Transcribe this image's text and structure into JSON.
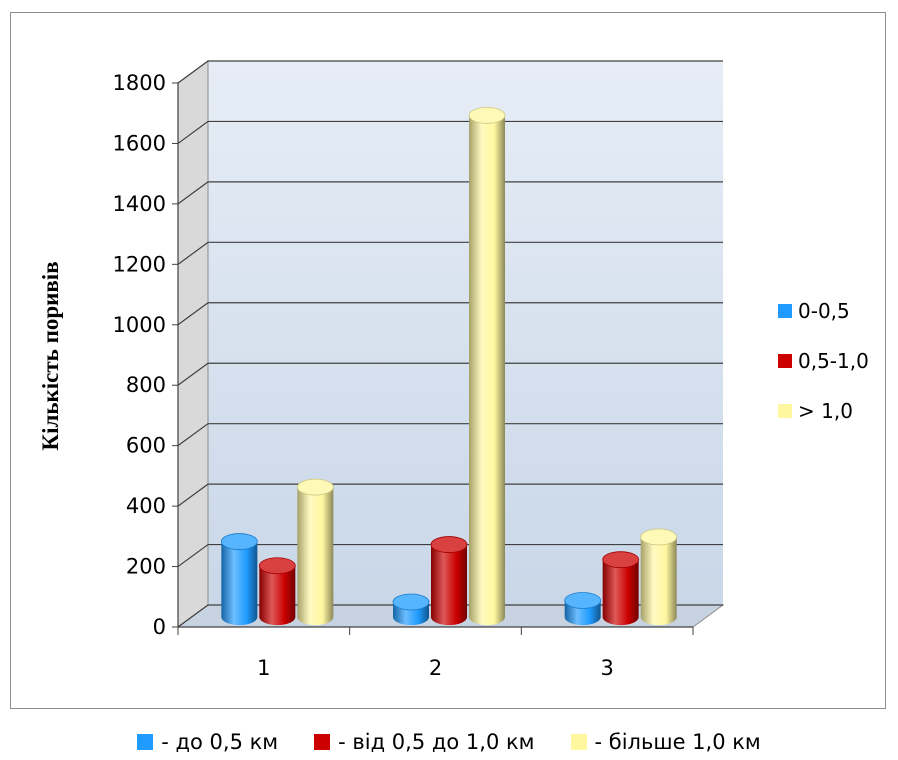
{
  "chart_data": {
    "type": "bar",
    "categories": [
      "1",
      "2",
      "3"
    ],
    "series": [
      {
        "name": "0-0,5",
        "values": [
          250,
          50,
          55
        ],
        "color": "#1f9bff"
      },
      {
        "name": "0,5-1,0",
        "values": [
          170,
          240,
          190
        ],
        "color": "#cc0000"
      },
      {
        "name": "> 1,0",
        "values": [
          430,
          1660,
          265
        ],
        "color": "#fff7a0"
      }
    ],
    "ylabel": "Кількість поривів",
    "xlabel": "",
    "ylim": [
      0,
      1800
    ],
    "yticks": [
      "0",
      "200",
      "400",
      "600",
      "800",
      "1000",
      "1200",
      "1400",
      "1600",
      "1800"
    ],
    "grid": true,
    "legend_position": "right",
    "style": "3d-cylinder"
  },
  "bottom_legend": [
    {
      "label": "- до 0,5 км",
      "color": "#1f9bff"
    },
    {
      "label": "- від 0,5  до 1,0 км",
      "color": "#cc0000"
    },
    {
      "label": "- більше 1,0 км",
      "color": "#fff7a0"
    }
  ]
}
